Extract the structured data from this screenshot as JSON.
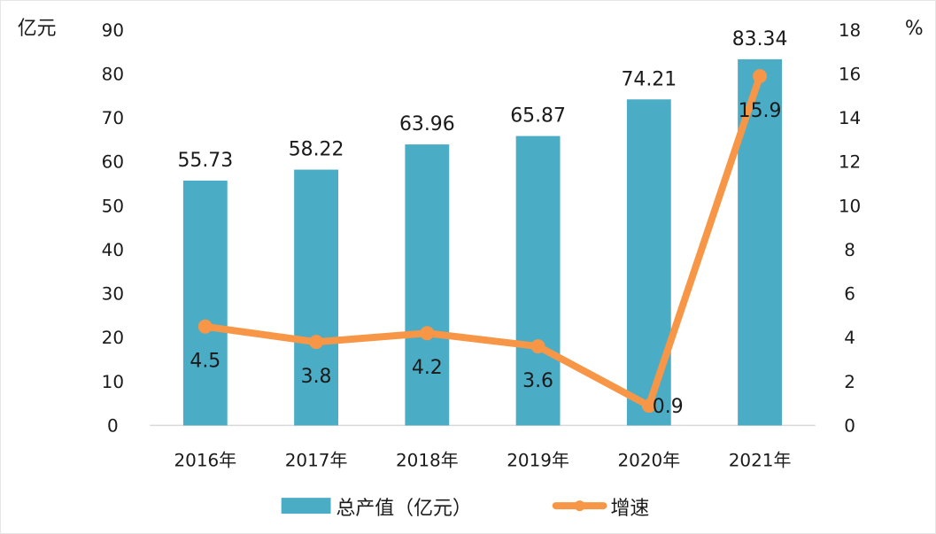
{
  "chart_data": {
    "type": "bar+line",
    "categories": [
      "2016年",
      "2017年",
      "2018年",
      "2019年",
      "2020年",
      "2021年"
    ],
    "series": [
      {
        "name": "总产值（亿元）",
        "type": "bar",
        "axis": "left",
        "values": [
          55.73,
          58.22,
          63.96,
          65.87,
          74.21,
          83.34
        ],
        "data_labels": [
          "55.73",
          "58.22",
          "63.96",
          "65.87",
          "74.21",
          "83.34"
        ],
        "color": "#4bacc6"
      },
      {
        "name": "增速",
        "type": "line",
        "axis": "right",
        "values": [
          4.5,
          3.8,
          4.2,
          3.6,
          0.9,
          15.9
        ],
        "data_labels": [
          "4.5",
          "3.8",
          "4.2",
          "3.6",
          "0.9",
          "15.9"
        ],
        "color": "#f79646"
      }
    ],
    "y_left": {
      "unit": "亿元",
      "ylim": [
        0,
        90
      ],
      "ticks": [
        "0",
        "10",
        "20",
        "30",
        "40",
        "50",
        "60",
        "70",
        "80",
        "90"
      ]
    },
    "y_right": {
      "unit": "%",
      "ylim": [
        0,
        18
      ],
      "ticks": [
        "0",
        "2",
        "4",
        "6",
        "8",
        "10",
        "12",
        "14",
        "16",
        "18"
      ]
    },
    "grid": false,
    "legend_position": "bottom"
  }
}
